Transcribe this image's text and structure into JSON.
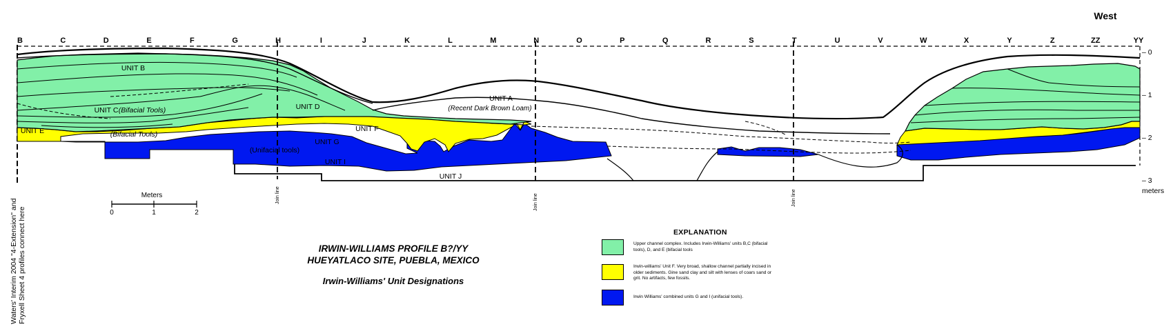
{
  "direction_label": "West",
  "stations": [
    "B",
    "C",
    "D",
    "E",
    "F",
    "G",
    "H",
    "I",
    "J",
    "K",
    "L",
    "M",
    "N",
    "O",
    "P",
    "Q",
    "R",
    "S",
    "T",
    "U",
    "V",
    "W",
    "X",
    "Y",
    "Z",
    "ZZ",
    "YY"
  ],
  "depth_scale": {
    "ticks": [
      "– 0",
      "– 1",
      "– 2",
      "– 3"
    ],
    "unit": "meters"
  },
  "join_line_label": "Join line",
  "units": {
    "a": "UNIT A",
    "a_desc": "(Recent Dark Brown Loam)",
    "b": "UNIT B",
    "c": "UNIT C",
    "c_desc": "(Bifacial Tools)",
    "d": "UNIT D",
    "e": "UNIT E",
    "e_desc": "(Bifacial Tools)",
    "f": "UNIT F",
    "g": "UNIT G",
    "g_desc": "(Unifacial tools)",
    "i": "UNIT I",
    "j": "UNIT J"
  },
  "scale_bar": {
    "label": "Meters",
    "ticks": [
      "0",
      "1",
      "2"
    ]
  },
  "side_note": {
    "line1": "Waters' Interim 2004 \"4-Extension\" and",
    "line2": "Fryxell Sheet 4 profiles connect here"
  },
  "title": {
    "line1": "IRWIN-WILLIAMS PROFILE B?/YY",
    "line2": "HUEYATLACO SITE, PUEBLA, MEXICO",
    "subtitle": "Irwin-Williams' Unit Designations"
  },
  "explanation": {
    "heading": "EXPLANATION",
    "items": [
      {
        "color": "#82F0A8",
        "text": "Upper channel complex. Includes Irwin-Williams' units B,C (bifacial tools), D, and E (bifacial tools"
      },
      {
        "color": "#FFFF00",
        "text": "Irwin-williams' Unit F. Very broad, shallow channel partially incised in older sediments. Gine sand clay and silt with lenses of coars sand or grit.  No artifacts, few fossils."
      },
      {
        "color": "#0018F0",
        "text": "Irwin Williams' combined units G and I (unifacial tools)."
      }
    ]
  },
  "colors": {
    "green": "#82F0A8",
    "yellow": "#FFFF00",
    "blue": "#0018F0"
  }
}
